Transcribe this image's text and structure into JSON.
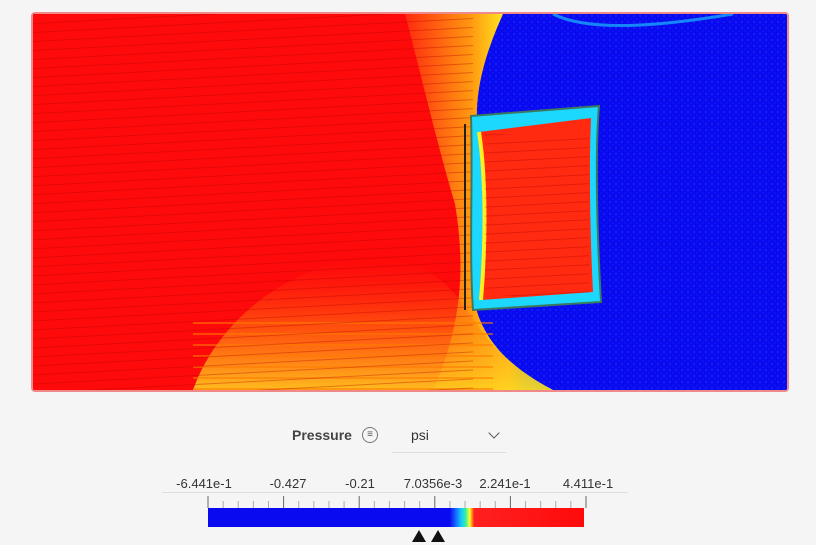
{
  "legend": {
    "quantity": "Pressure",
    "menu_icon": "menu-icon",
    "unit": "psi",
    "unit_options": [
      "psi"
    ],
    "tick_labels": [
      "-6.441e-1",
      "-0.427",
      "-0.21",
      "7.0356e-3",
      "2.241e-1",
      "4.411e-1"
    ],
    "range_min": -0.6441,
    "range_max": 0.4411,
    "lower_handle_value": -0.0355,
    "upper_handle_value": 0.0205,
    "colors": {
      "low": "#0a0af0",
      "high": "#ff0a0a",
      "mid": [
        "#11c8ff",
        "#3cf0a0",
        "#ffff20"
      ]
    }
  }
}
